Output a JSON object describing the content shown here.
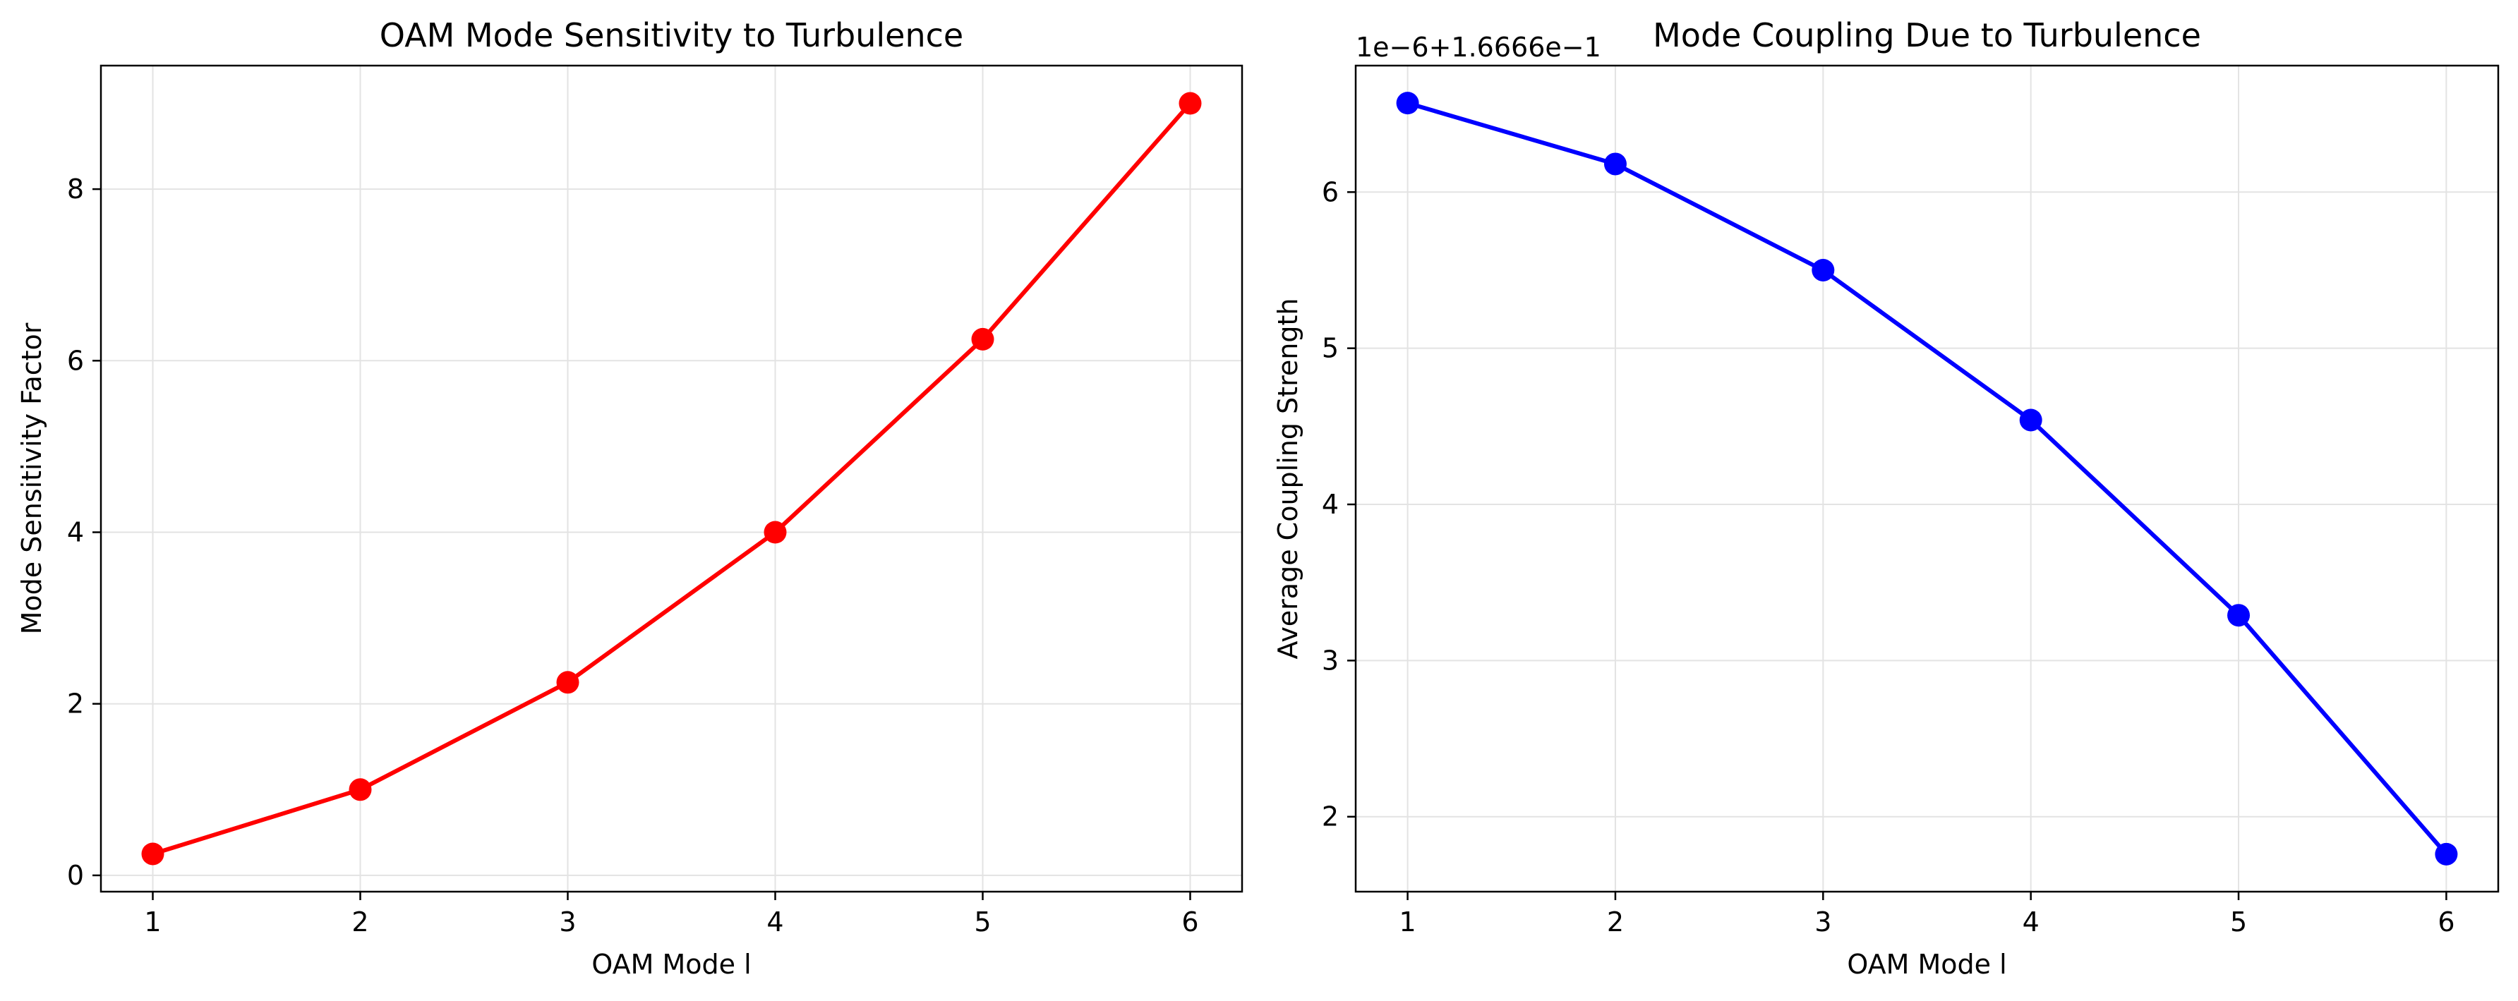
{
  "chart_data": [
    {
      "type": "line",
      "title": "OAM Mode Sensitivity to Turbulence",
      "xlabel": "OAM Mode l",
      "ylabel": "Mode Sensitivity Factor",
      "x": [
        1,
        2,
        3,
        4,
        5,
        6
      ],
      "series": [
        {
          "values": [
            0.25,
            1.0,
            2.25,
            4.0,
            6.25,
            9.0
          ],
          "color": "#ff0000",
          "marker": "circle"
        }
      ],
      "xlim": [
        0.75,
        6.25
      ],
      "ylim": [
        -0.19,
        9.44
      ],
      "xticks": [
        "1",
        "2",
        "3",
        "4",
        "5",
        "6"
      ],
      "yticks": [
        "0",
        "2",
        "4",
        "6",
        "8"
      ],
      "ytick_values": [
        0,
        2,
        4,
        6,
        8
      ],
      "grid": true
    },
    {
      "type": "line",
      "title": "Mode Coupling Due to Turbulence",
      "xlabel": "OAM Mode l",
      "ylabel": "Average Coupling Strength",
      "offset_text": "1e−6+1.6666e−1",
      "x": [
        1,
        2,
        3,
        4,
        5,
        6
      ],
      "series": [
        {
          "values": [
            6.57,
            6.18,
            5.5,
            4.54,
            3.29,
            1.76
          ],
          "color": "#0000ff",
          "marker": "circle"
        }
      ],
      "xlim": [
        0.75,
        6.25
      ],
      "ylim": [
        1.52,
        6.81
      ],
      "xticks": [
        "1",
        "2",
        "3",
        "4",
        "5",
        "6"
      ],
      "yticks": [
        "2",
        "3",
        "4",
        "5",
        "6"
      ],
      "ytick_values": [
        2,
        3,
        4,
        5,
        6
      ],
      "grid": true
    }
  ]
}
